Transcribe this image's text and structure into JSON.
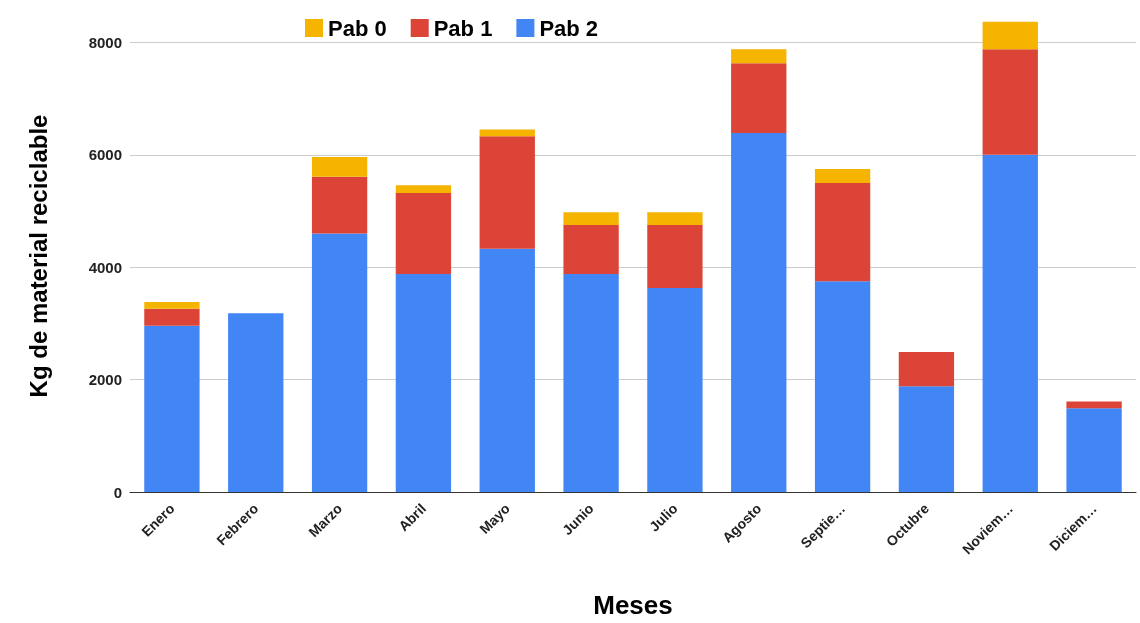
{
  "chart_data": {
    "type": "bar",
    "stacked": true,
    "xlabel": "Meses",
    "ylabel": "Kg de material reciclable",
    "categories": [
      "Enero",
      "Febrero",
      "Marzo",
      "Abril",
      "Mayo",
      "Junio",
      "Julio",
      "Agosto",
      "Septie…",
      "Octubre",
      "Noviem…",
      "Diciem…"
    ],
    "series": [
      {
        "name": "Pab 2",
        "color": "#4285f4",
        "values": [
          2960,
          3180,
          4600,
          3880,
          4330,
          3880,
          3630,
          6390,
          3750,
          1880,
          6000,
          1490
        ]
      },
      {
        "name": "Pab 1",
        "color": "#db4437",
        "values": [
          300,
          0,
          1010,
          1440,
          2000,
          870,
          1120,
          1240,
          1750,
          610,
          1880,
          120
        ]
      },
      {
        "name": "Pab 0",
        "color": "#f4b400",
        "values": [
          120,
          0,
          350,
          140,
          120,
          230,
          230,
          250,
          250,
          0,
          490,
          0
        ]
      }
    ],
    "ylim": [
      0,
      8400
    ],
    "yticks": [
      0,
      2000,
      4000,
      6000,
      8000
    ],
    "grid": "y",
    "legend": "top"
  }
}
